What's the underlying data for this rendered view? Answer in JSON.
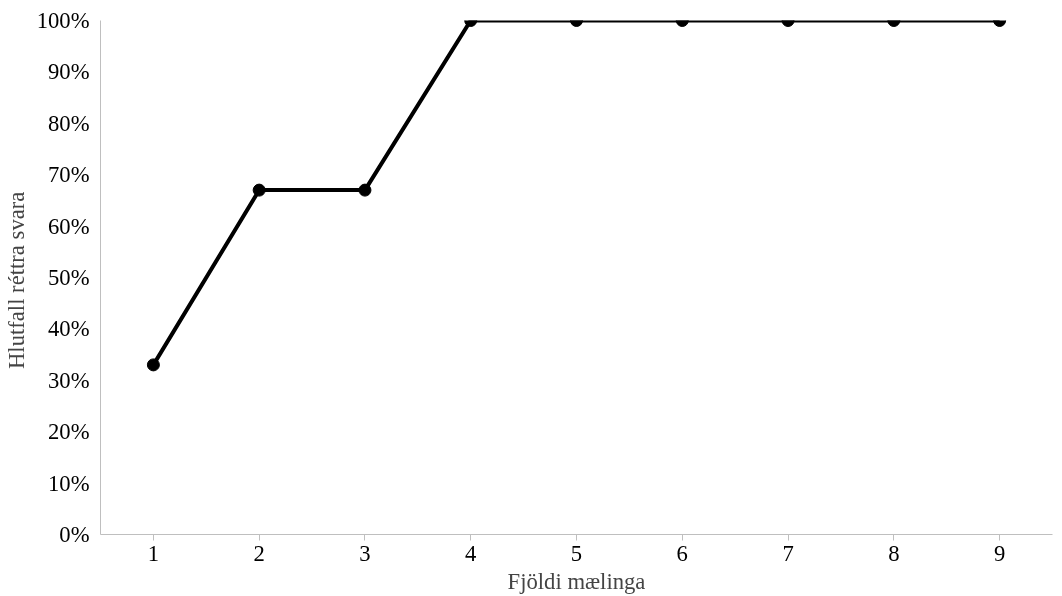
{
  "chart_data": {
    "type": "line",
    "xlabel": "Fjöldi mælinga",
    "ylabel": "Hlutfall  réttra svara",
    "categories": [
      "1",
      "2",
      "3",
      "4",
      "5",
      "6",
      "7",
      "8",
      "9"
    ],
    "series": [
      {
        "color": "#000000",
        "values": [
          33,
          67,
          67,
          100,
          100,
          100,
          100,
          100,
          100
        ]
      }
    ],
    "ylim": [
      0,
      100
    ],
    "yticks": [
      {
        "value": 0,
        "label": "0%"
      },
      {
        "value": 10,
        "label": "10%"
      },
      {
        "value": 20,
        "label": "20%"
      },
      {
        "value": 30,
        "label": "30%"
      },
      {
        "value": 40,
        "label": "40%"
      },
      {
        "value": 50,
        "label": "50%"
      },
      {
        "value": 60,
        "label": "60%"
      },
      {
        "value": 70,
        "label": "70%"
      },
      {
        "value": 80,
        "label": "80%"
      },
      {
        "value": 90,
        "label": "90%"
      },
      {
        "value": 100,
        "label": "100%"
      }
    ],
    "grid": false,
    "marker": "circle",
    "line_style": "solid"
  }
}
